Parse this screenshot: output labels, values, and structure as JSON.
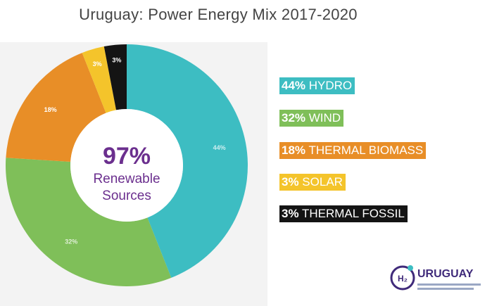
{
  "chart_data": {
    "type": "pie",
    "title": "Uruguay: Power Energy Mix 2017-2020",
    "donut": true,
    "center": {
      "percent": "97%",
      "line1": "Renewable",
      "line2": "Sources"
    },
    "slices": [
      {
        "label": "HYDRO",
        "value": 44,
        "display": "44%",
        "color": "#3dbdc2"
      },
      {
        "label": "WIND",
        "value": 32,
        "display": "32%",
        "color": "#7fbf59"
      },
      {
        "label": "THERMAL BIOMASS",
        "value": 18,
        "display": "18%",
        "color": "#e88e27"
      },
      {
        "label": "SOLAR",
        "value": 3,
        "display": "3%",
        "color": "#f4c42b"
      },
      {
        "label": "THERMAL FOSSIL",
        "value": 3,
        "display": "3%",
        "color": "#141414"
      }
    ],
    "legend": [
      {
        "percent": "44%",
        "label": "HYDRO",
        "bg": "#3dbdc2",
        "fg": "#ffffff"
      },
      {
        "percent": "32%",
        "label": "WIND",
        "bg": "#7fbf59",
        "fg": "#ffffff"
      },
      {
        "percent": "18%",
        "label": "THERMAL BIOMASS",
        "bg": "#e88e27",
        "fg": "#ffffff"
      },
      {
        "percent": "3%",
        "label": "SOLAR",
        "bg": "#f4c42b",
        "fg": "#ffffff"
      },
      {
        "percent": "3%",
        "label": "THERMAL FOSSIL",
        "bg": "#141414",
        "fg": "#ffffff"
      }
    ],
    "legend_placement": "right",
    "center_color": "#6b2f8e"
  },
  "logo": {
    "name": "URUGUAY",
    "badge": "H2",
    "color": "#3f2a7a"
  }
}
